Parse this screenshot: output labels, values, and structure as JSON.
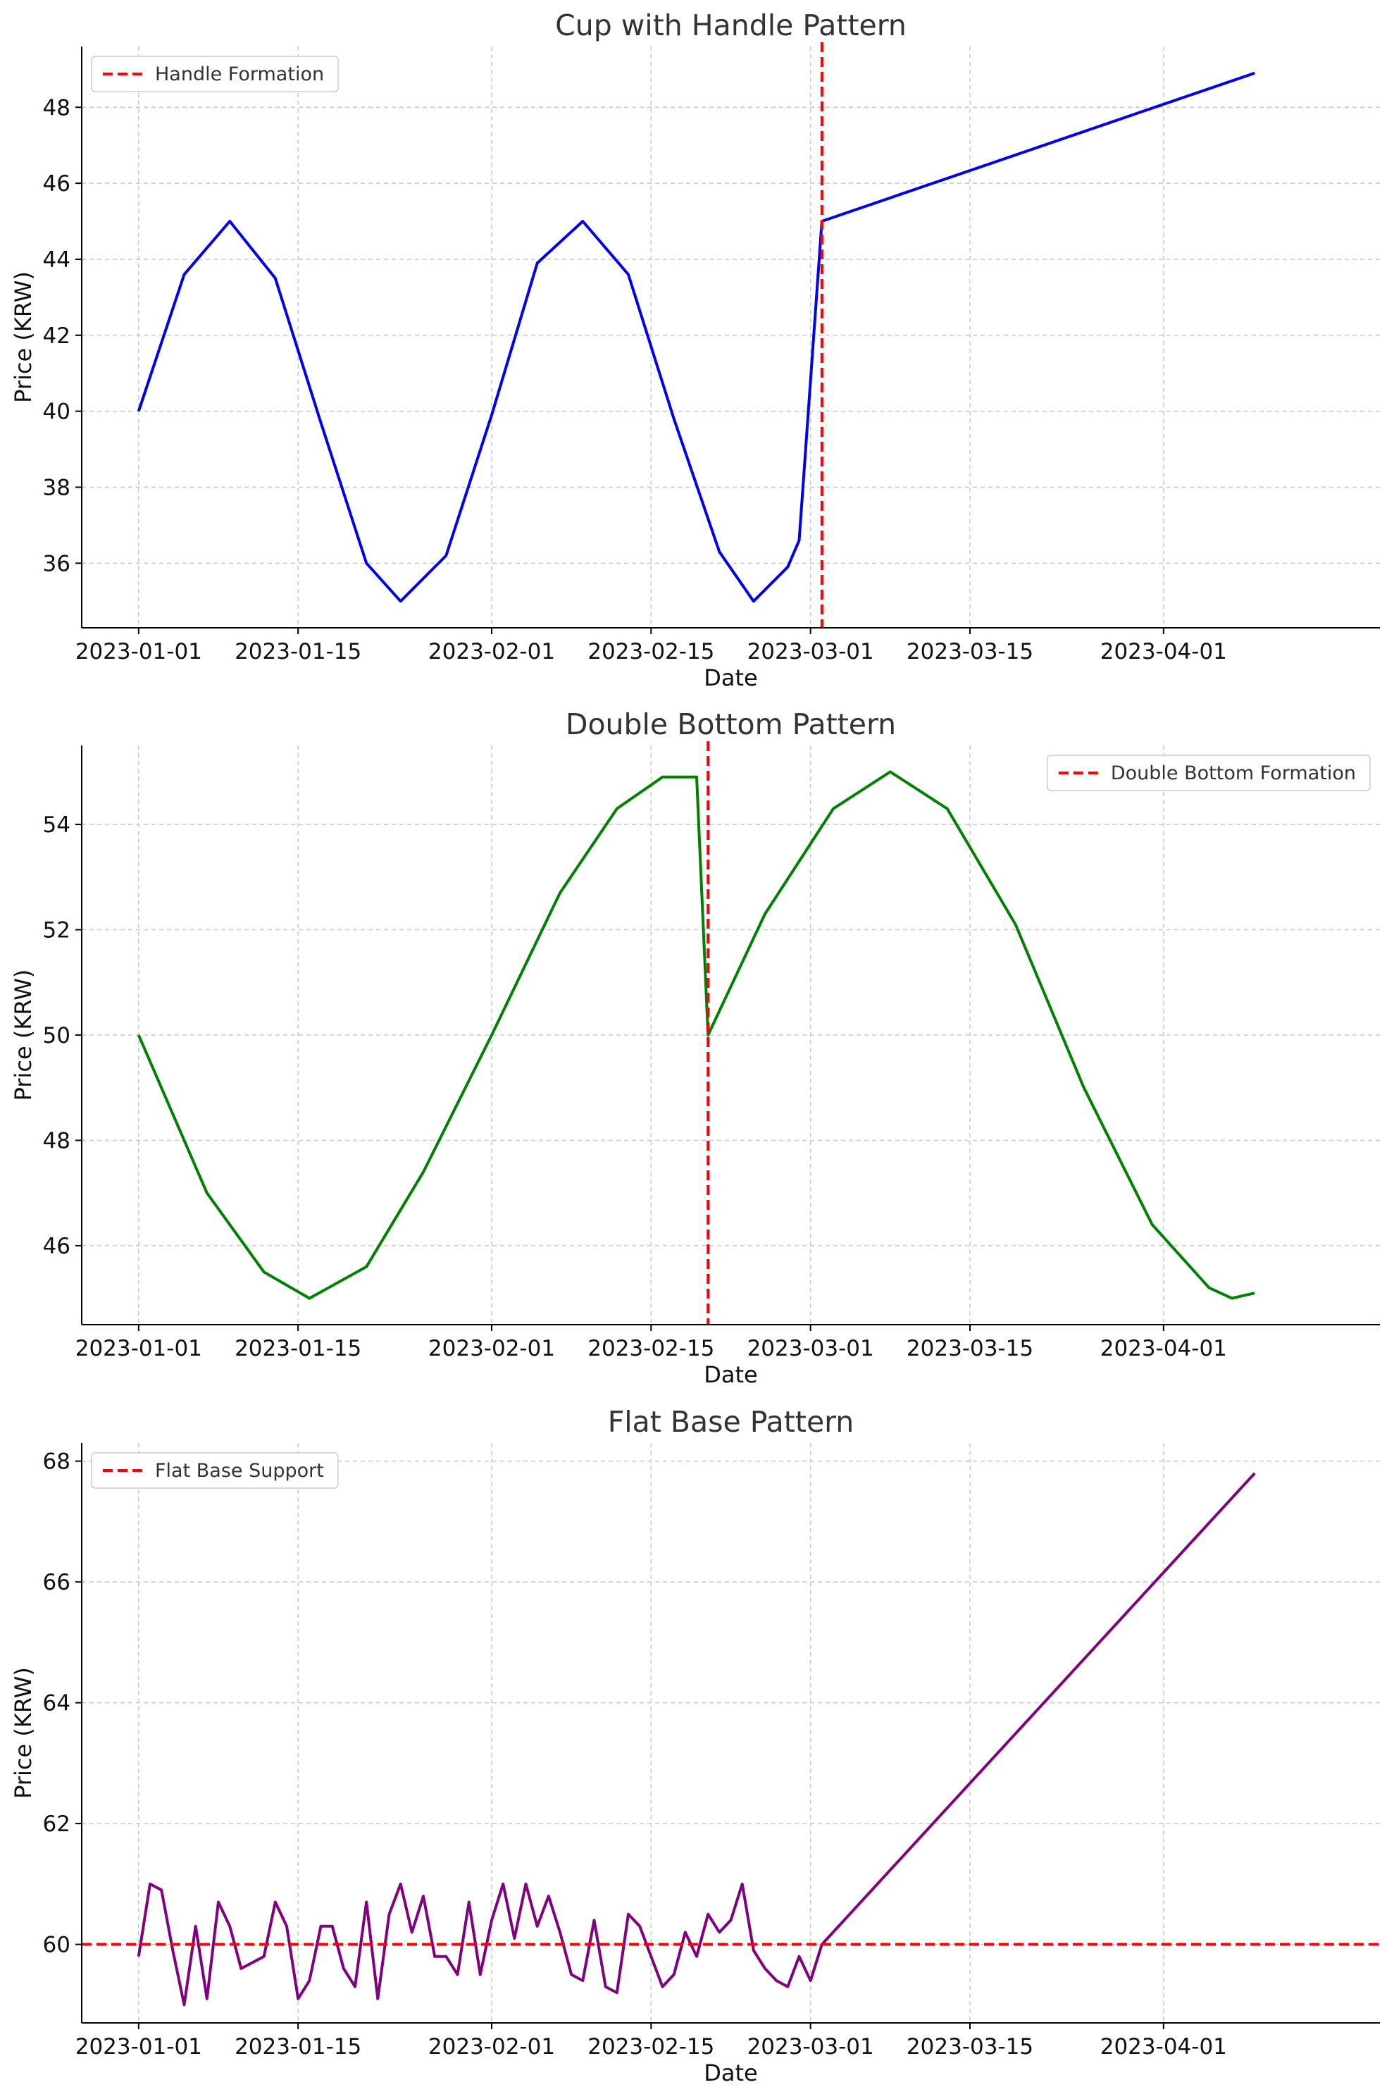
{
  "chart_data": [
    {
      "type": "line",
      "title": "Cup with Handle Pattern",
      "xlabel": "Date",
      "ylabel": "Price (KRW)",
      "xlim": [
        "2022-12-27",
        "2023-04-20"
      ],
      "ylim": [
        34.3,
        49.6
      ],
      "x_ticks": [
        "2023-01-01",
        "2023-01-15",
        "2023-02-01",
        "2023-02-15",
        "2023-03-01",
        "2023-03-15",
        "2023-04-01"
      ],
      "y_ticks": [
        36,
        38,
        40,
        42,
        44,
        46,
        48
      ],
      "grid": true,
      "legend_position": "top-left",
      "series": [
        {
          "name": "",
          "color": "#0000ee",
          "points": [
            [
              "2023-01-01",
              40.0
            ],
            [
              "2023-01-05",
              43.6
            ],
            [
              "2023-01-09",
              45.0
            ],
            [
              "2023-01-13",
              43.5
            ],
            [
              "2023-01-17",
              39.7
            ],
            [
              "2023-01-21",
              36.0
            ],
            [
              "2023-01-24",
              35.0
            ],
            [
              "2023-01-28",
              36.2
            ],
            [
              "2023-02-01",
              39.9
            ],
            [
              "2023-02-05",
              43.9
            ],
            [
              "2023-02-09",
              45.0
            ],
            [
              "2023-02-13",
              43.6
            ],
            [
              "2023-02-17",
              39.8
            ],
            [
              "2023-02-21",
              36.3
            ],
            [
              "2023-02-24",
              35.0
            ],
            [
              "2023-02-27",
              35.9
            ],
            [
              "2023-02-28",
              36.6
            ],
            [
              "2023-03-02",
              45.0
            ],
            [
              "2023-04-09",
              48.9
            ]
          ]
        }
      ],
      "markers": [
        {
          "label": "Handle Formation",
          "axis": "x",
          "value": "2023-03-02",
          "color": "#ff0000"
        }
      ]
    },
    {
      "type": "line",
      "title": "Double Bottom Pattern",
      "xlabel": "Date",
      "ylabel": "Price (KRW)",
      "xlim": [
        "2022-12-27",
        "2023-04-20"
      ],
      "ylim": [
        44.5,
        55.5
      ],
      "x_ticks": [
        "2023-01-01",
        "2023-01-15",
        "2023-02-01",
        "2023-02-15",
        "2023-03-01",
        "2023-03-15",
        "2023-04-01"
      ],
      "y_ticks": [
        46,
        48,
        50,
        52,
        54
      ],
      "grid": true,
      "legend_position": "top-right",
      "series": [
        {
          "name": "",
          "color": "#008000",
          "points": [
            [
              "2023-01-01",
              50.0
            ],
            [
              "2023-01-07",
              47.0
            ],
            [
              "2023-01-12",
              45.5
            ],
            [
              "2023-01-16",
              45.0
            ],
            [
              "2023-01-21",
              45.6
            ],
            [
              "2023-01-26",
              47.4
            ],
            [
              "2023-02-01",
              50.0
            ],
            [
              "2023-02-07",
              52.7
            ],
            [
              "2023-02-12",
              54.3
            ],
            [
              "2023-02-16",
              54.9
            ],
            [
              "2023-02-19",
              54.9
            ],
            [
              "2023-02-20",
              50.0
            ],
            [
              "2023-02-25",
              52.3
            ],
            [
              "2023-03-03",
              54.3
            ],
            [
              "2023-03-08",
              55.0
            ],
            [
              "2023-03-13",
              54.3
            ],
            [
              "2023-03-19",
              52.1
            ],
            [
              "2023-03-25",
              49.0
            ],
            [
              "2023-03-31",
              46.4
            ],
            [
              "2023-04-05",
              45.2
            ],
            [
              "2023-04-07",
              45.0
            ],
            [
              "2023-04-09",
              45.1
            ]
          ]
        }
      ],
      "markers": [
        {
          "label": "Double Bottom Formation",
          "axis": "x",
          "value": "2023-02-20",
          "color": "#ff0000"
        }
      ]
    },
    {
      "type": "line",
      "title": "Flat Base Pattern",
      "xlabel": "Date",
      "ylabel": "Price (KRW)",
      "xlim": [
        "2022-12-27",
        "2023-04-20"
      ],
      "ylim": [
        58.7,
        68.3
      ],
      "x_ticks": [
        "2023-01-01",
        "2023-01-15",
        "2023-02-01",
        "2023-02-15",
        "2023-03-01",
        "2023-03-15",
        "2023-04-01"
      ],
      "y_ticks": [
        60,
        62,
        64,
        66,
        68
      ],
      "grid": true,
      "legend_position": "top-left",
      "series": [
        {
          "name": "",
          "color": "#800080",
          "points": [
            [
              "2023-01-01",
              59.8
            ],
            [
              "2023-01-02",
              61.0
            ],
            [
              "2023-01-03",
              60.9
            ],
            [
              "2023-01-04",
              59.9
            ],
            [
              "2023-01-05",
              59.0
            ],
            [
              "2023-01-06",
              60.3
            ],
            [
              "2023-01-07",
              59.1
            ],
            [
              "2023-01-08",
              60.7
            ],
            [
              "2023-01-09",
              60.3
            ],
            [
              "2023-01-10",
              59.6
            ],
            [
              "2023-01-11",
              59.7
            ],
            [
              "2023-01-12",
              59.8
            ],
            [
              "2023-01-13",
              60.7
            ],
            [
              "2023-01-14",
              60.3
            ],
            [
              "2023-01-15",
              59.1
            ],
            [
              "2023-01-16",
              59.4
            ],
            [
              "2023-01-17",
              60.3
            ],
            [
              "2023-01-18",
              60.3
            ],
            [
              "2023-01-19",
              59.6
            ],
            [
              "2023-01-20",
              59.3
            ],
            [
              "2023-01-21",
              60.7
            ],
            [
              "2023-01-22",
              59.1
            ],
            [
              "2023-01-23",
              60.5
            ],
            [
              "2023-01-24",
              61.0
            ],
            [
              "2023-01-25",
              60.2
            ],
            [
              "2023-01-26",
              60.8
            ],
            [
              "2023-01-27",
              59.8
            ],
            [
              "2023-01-28",
              59.8
            ],
            [
              "2023-01-29",
              59.5
            ],
            [
              "2023-01-30",
              60.7
            ],
            [
              "2023-01-31",
              59.5
            ],
            [
              "2023-02-01",
              60.4
            ],
            [
              "2023-02-02",
              61.0
            ],
            [
              "2023-02-03",
              60.1
            ],
            [
              "2023-02-04",
              61.0
            ],
            [
              "2023-02-05",
              60.3
            ],
            [
              "2023-02-06",
              60.8
            ],
            [
              "2023-02-07",
              60.2
            ],
            [
              "2023-02-08",
              59.5
            ],
            [
              "2023-02-09",
              59.4
            ],
            [
              "2023-02-10",
              60.4
            ],
            [
              "2023-02-11",
              59.3
            ],
            [
              "2023-02-12",
              59.2
            ],
            [
              "2023-02-13",
              60.5
            ],
            [
              "2023-02-14",
              60.3
            ],
            [
              "2023-02-15",
              59.8
            ],
            [
              "2023-02-16",
              59.3
            ],
            [
              "2023-02-17",
              59.5
            ],
            [
              "2023-02-18",
              60.2
            ],
            [
              "2023-02-19",
              59.8
            ],
            [
              "2023-02-20",
              60.5
            ],
            [
              "2023-02-21",
              60.2
            ],
            [
              "2023-02-22",
              60.4
            ],
            [
              "2023-02-23",
              61.0
            ],
            [
              "2023-02-24",
              59.9
            ],
            [
              "2023-02-25",
              59.6
            ],
            [
              "2023-02-26",
              59.4
            ],
            [
              "2023-02-27",
              59.3
            ],
            [
              "2023-02-28",
              59.8
            ],
            [
              "2023-03-01",
              59.4
            ],
            [
              "2023-03-02",
              60.0
            ],
            [
              "2023-04-09",
              67.8
            ]
          ]
        }
      ],
      "markers": [
        {
          "label": "Flat Base Support",
          "axis": "y",
          "value": 60,
          "color": "#ff0000"
        }
      ]
    }
  ]
}
